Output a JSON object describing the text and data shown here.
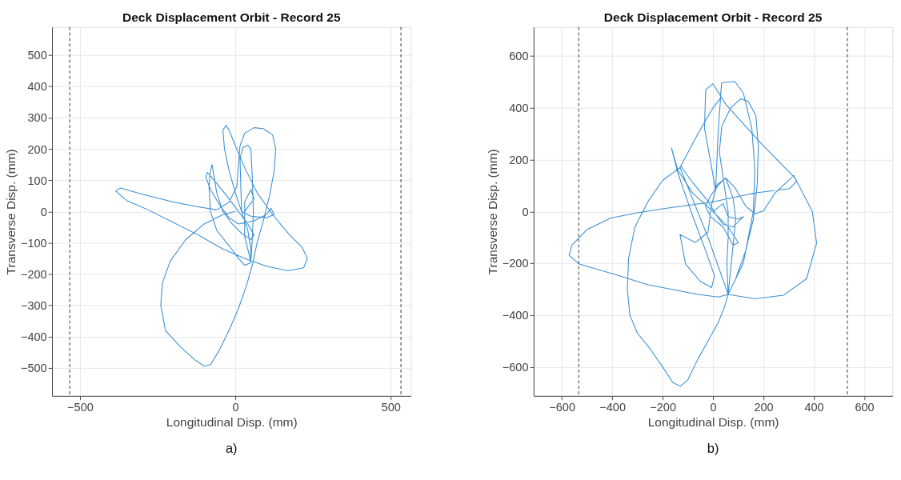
{
  "chart_data": [
    {
      "type": "line",
      "title": "Deck Displacement Orbit - Record 25",
      "xlabel": "Longitudinal Disp. (mm)",
      "ylabel": "Transverse Disp. (mm)",
      "annotations": [
        "a)"
      ],
      "xlim": [
        -590,
        565
      ],
      "ylim": [
        -590,
        590
      ],
      "xticks": [
        -500,
        0,
        500
      ],
      "yticks": [
        -500,
        -400,
        -300,
        -200,
        -100,
        0,
        100,
        200,
        300,
        400,
        500
      ],
      "grid": true,
      "line_style": "solid",
      "ref_lines": [
        {
          "axis": "x",
          "value": -533,
          "color": "#333333",
          "line_style": "dashed"
        },
        {
          "axis": "x",
          "value": 533,
          "color": "#333333",
          "line_style": "dashed"
        }
      ],
      "series": [
        {
          "color": "#3a8fd4",
          "x": [
            0,
            -40,
            -100,
            -160,
            -210,
            -235,
            -240,
            -225,
            -180,
            -130,
            -100,
            -80,
            -55,
            -20,
            10,
            35,
            55,
            70,
            90,
            110,
            125,
            130,
            120,
            90,
            60,
            30,
            15,
            10,
            5,
            -20,
            -60,
            -120,
            -200,
            -300,
            -370,
            -385,
            -350,
            -280,
            -200,
            -120,
            -40,
            30,
            100,
            170,
            220,
            232,
            215,
            170,
            120,
            70,
            30,
            0,
            -20,
            -30,
            -40,
            -35,
            -20,
            0,
            20,
            40,
            50,
            48,
            30,
            10,
            -20,
            -60,
            -80,
            -85,
            -80,
            -75,
            -70,
            -60,
            -40,
            -10,
            20,
            50,
            60,
            40,
            10,
            -20,
            -60,
            -90,
            -95,
            -80,
            -50,
            -20,
            10,
            60,
            100,
            115,
            125,
            100,
            50,
            20,
            15,
            25,
            40,
            50,
            55,
            58,
            55,
            50,
            30,
            30,
            50,
            60,
            30
          ],
          "values": [
            0,
            -10,
            -40,
            -90,
            -160,
            -230,
            -300,
            -380,
            -430,
            -475,
            -495,
            -490,
            -450,
            -380,
            -310,
            -240,
            -170,
            -100,
            -30,
            50,
            130,
            200,
            245,
            265,
            268,
            250,
            210,
            150,
            80,
            30,
            5,
            15,
            30,
            55,
            75,
            65,
            35,
            5,
            -35,
            -75,
            -120,
            -150,
            -175,
            -190,
            -180,
            -150,
            -115,
            -70,
            -10,
            60,
            140,
            210,
            260,
            275,
            260,
            200,
            130,
            60,
            0,
            -60,
            -120,
            -165,
            -172,
            -150,
            -110,
            -60,
            0,
            80,
            130,
            150,
            120,
            60,
            0,
            -40,
            -70,
            -90,
            -75,
            -40,
            0,
            40,
            90,
            125,
            110,
            70,
            20,
            -20,
            -40,
            -30,
            -10,
            10,
            -10,
            -20,
            -15,
            0,
            170,
            205,
            212,
            200,
            100,
            0,
            -80,
            -160,
            -80,
            30,
            70,
            40,
            0
          ]
        }
      ]
    },
    {
      "type": "line",
      "title": "Deck Displacement Orbit - Record 25",
      "xlabel": "Longitudinal Disp. (mm)",
      "ylabel": "Transverse Disp. (mm)",
      "annotations": [
        "b)"
      ],
      "xlim": [
        -712,
        712
      ],
      "ylim": [
        -712,
        712
      ],
      "xticks": [
        -600,
        -400,
        -200,
        0,
        200,
        400,
        600
      ],
      "yticks": [
        -600,
        -400,
        -200,
        0,
        200,
        400,
        600
      ],
      "grid": true,
      "line_style": "solid",
      "ref_lines": [
        {
          "axis": "x",
          "value": -533,
          "color": "#333333",
          "line_style": "dashed"
        },
        {
          "axis": "x",
          "value": 533,
          "color": "#333333",
          "line_style": "dashed"
        }
      ],
      "series": [
        {
          "color": "#3a8fd4",
          "x": [
            0,
            40,
            60,
            100,
            120,
            80,
            40,
            10,
            -20,
            -80,
            -126,
            -200,
            -257,
            -310,
            -335,
            -340,
            -330,
            -300,
            -250,
            -200,
            -160,
            -130,
            -100,
            -60,
            -20,
            20,
            45,
            60,
            90,
            130,
            160,
            175,
            180,
            170,
            140,
            110,
            70,
            35,
            25,
            40,
            60,
            60,
            55,
            60,
            20,
            -60,
            -257,
            -400,
            -531,
            -571,
            -560,
            -500,
            -406,
            -300,
            -200,
            0,
            166,
            303,
            331,
            320,
            300,
            246,
            200,
            166,
            130,
            86,
            51,
            17,
            -6,
            -20,
            -70,
            -131,
            -109,
            -50,
            -6,
            6,
            -30,
            -80,
            -140,
            -165,
            -140,
            -80,
            0,
            60,
            100,
            80,
            40,
            -10,
            -30,
            -10,
            20,
            50,
            80,
            90,
            60,
            166,
            280,
            371,
            411,
            394,
            326,
            189,
            51,
            0,
            -29,
            -34,
            -6,
            10,
            20,
            34,
            60,
            86,
            120,
            154,
            166,
            160,
            120,
            60,
            -20,
            -131,
            -60,
            0,
            29,
            34
          ],
          "values": [
            0,
            30,
            -20,
            -30,
            -20,
            -60,
            -50,
            -10,
            40,
            110,
            173,
            120,
            40,
            -60,
            -180,
            -300,
            -400,
            -470,
            -530,
            -600,
            -660,
            -675,
            -650,
            -570,
            -500,
            -430,
            -370,
            -320,
            -260,
            -150,
            -30,
            100,
            250,
            370,
            425,
            435,
            400,
            330,
            230,
            130,
            0,
            -100,
            -200,
            -320,
            -330,
            -320,
            -283,
            -240,
            -203,
            -169,
            -130,
            -70,
            -25,
            -5,
            10,
            37,
            71,
            88,
            116,
            139,
            120,
            71,
            2,
            -9,
            20,
            93,
            128,
            105,
            25,
            -80,
            -120,
            -89,
            -203,
            -270,
            -294,
            -249,
            -150,
            -20,
            150,
            245,
            160,
            70,
            0,
            -60,
            -120,
            -130,
            -60,
            -20,
            20,
            60,
            100,
            130,
            50,
            -30,
            -320,
            -337,
            -323,
            -260,
            -123,
            0,
            128,
            265,
            413,
            493,
            470,
            322,
            173,
            80,
            300,
            496,
            500,
            502,
            458,
            321,
            162,
            0,
            -200,
            -320,
            -100,
            170,
            300,
            400,
            436,
            496
          ]
        }
      ]
    }
  ]
}
